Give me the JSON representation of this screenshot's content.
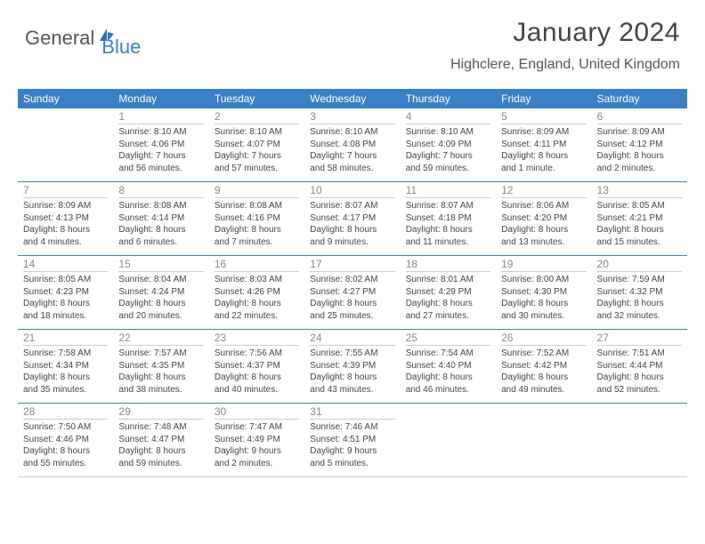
{
  "logo": {
    "text1": "General",
    "text2": "Blue"
  },
  "title": {
    "month": "January 2024",
    "location": "Highclere, England, United Kingdom"
  },
  "colors": {
    "header_bg": "#3b7fc4",
    "header_fg": "#ffffff",
    "text": "#444444",
    "muted": "#888888",
    "row_border": "#3b7fc4",
    "logo_gray": "#555555",
    "logo_blue": "#3b7fc4",
    "page_bg": "#ffffff"
  },
  "typography": {
    "title_fontsize": 30,
    "location_fontsize": 16,
    "weekday_fontsize": 12,
    "daynum_fontsize": 12,
    "cell_fontsize": 10
  },
  "weekdays": [
    "Sunday",
    "Monday",
    "Tuesday",
    "Wednesday",
    "Thursday",
    "Friday",
    "Saturday"
  ],
  "weeks": [
    [
      null,
      {
        "n": "1",
        "sr": "Sunrise: 8:10 AM",
        "ss": "Sunset: 4:06 PM",
        "d1": "Daylight: 7 hours",
        "d2": "and 56 minutes."
      },
      {
        "n": "2",
        "sr": "Sunrise: 8:10 AM",
        "ss": "Sunset: 4:07 PM",
        "d1": "Daylight: 7 hours",
        "d2": "and 57 minutes."
      },
      {
        "n": "3",
        "sr": "Sunrise: 8:10 AM",
        "ss": "Sunset: 4:08 PM",
        "d1": "Daylight: 7 hours",
        "d2": "and 58 minutes."
      },
      {
        "n": "4",
        "sr": "Sunrise: 8:10 AM",
        "ss": "Sunset: 4:09 PM",
        "d1": "Daylight: 7 hours",
        "d2": "and 59 minutes."
      },
      {
        "n": "5",
        "sr": "Sunrise: 8:09 AM",
        "ss": "Sunset: 4:11 PM",
        "d1": "Daylight: 8 hours",
        "d2": "and 1 minute."
      },
      {
        "n": "6",
        "sr": "Sunrise: 8:09 AM",
        "ss": "Sunset: 4:12 PM",
        "d1": "Daylight: 8 hours",
        "d2": "and 2 minutes."
      }
    ],
    [
      {
        "n": "7",
        "sr": "Sunrise: 8:09 AM",
        "ss": "Sunset: 4:13 PM",
        "d1": "Daylight: 8 hours",
        "d2": "and 4 minutes."
      },
      {
        "n": "8",
        "sr": "Sunrise: 8:08 AM",
        "ss": "Sunset: 4:14 PM",
        "d1": "Daylight: 8 hours",
        "d2": "and 6 minutes."
      },
      {
        "n": "9",
        "sr": "Sunrise: 8:08 AM",
        "ss": "Sunset: 4:16 PM",
        "d1": "Daylight: 8 hours",
        "d2": "and 7 minutes."
      },
      {
        "n": "10",
        "sr": "Sunrise: 8:07 AM",
        "ss": "Sunset: 4:17 PM",
        "d1": "Daylight: 8 hours",
        "d2": "and 9 minutes."
      },
      {
        "n": "11",
        "sr": "Sunrise: 8:07 AM",
        "ss": "Sunset: 4:18 PM",
        "d1": "Daylight: 8 hours",
        "d2": "and 11 minutes."
      },
      {
        "n": "12",
        "sr": "Sunrise: 8:06 AM",
        "ss": "Sunset: 4:20 PM",
        "d1": "Daylight: 8 hours",
        "d2": "and 13 minutes."
      },
      {
        "n": "13",
        "sr": "Sunrise: 8:05 AM",
        "ss": "Sunset: 4:21 PM",
        "d1": "Daylight: 8 hours",
        "d2": "and 15 minutes."
      }
    ],
    [
      {
        "n": "14",
        "sr": "Sunrise: 8:05 AM",
        "ss": "Sunset: 4:23 PM",
        "d1": "Daylight: 8 hours",
        "d2": "and 18 minutes."
      },
      {
        "n": "15",
        "sr": "Sunrise: 8:04 AM",
        "ss": "Sunset: 4:24 PM",
        "d1": "Daylight: 8 hours",
        "d2": "and 20 minutes."
      },
      {
        "n": "16",
        "sr": "Sunrise: 8:03 AM",
        "ss": "Sunset: 4:26 PM",
        "d1": "Daylight: 8 hours",
        "d2": "and 22 minutes."
      },
      {
        "n": "17",
        "sr": "Sunrise: 8:02 AM",
        "ss": "Sunset: 4:27 PM",
        "d1": "Daylight: 8 hours",
        "d2": "and 25 minutes."
      },
      {
        "n": "18",
        "sr": "Sunrise: 8:01 AM",
        "ss": "Sunset: 4:29 PM",
        "d1": "Daylight: 8 hours",
        "d2": "and 27 minutes."
      },
      {
        "n": "19",
        "sr": "Sunrise: 8:00 AM",
        "ss": "Sunset: 4:30 PM",
        "d1": "Daylight: 8 hours",
        "d2": "and 30 minutes."
      },
      {
        "n": "20",
        "sr": "Sunrise: 7:59 AM",
        "ss": "Sunset: 4:32 PM",
        "d1": "Daylight: 8 hours",
        "d2": "and 32 minutes."
      }
    ],
    [
      {
        "n": "21",
        "sr": "Sunrise: 7:58 AM",
        "ss": "Sunset: 4:34 PM",
        "d1": "Daylight: 8 hours",
        "d2": "and 35 minutes."
      },
      {
        "n": "22",
        "sr": "Sunrise: 7:57 AM",
        "ss": "Sunset: 4:35 PM",
        "d1": "Daylight: 8 hours",
        "d2": "and 38 minutes."
      },
      {
        "n": "23",
        "sr": "Sunrise: 7:56 AM",
        "ss": "Sunset: 4:37 PM",
        "d1": "Daylight: 8 hours",
        "d2": "and 40 minutes."
      },
      {
        "n": "24",
        "sr": "Sunrise: 7:55 AM",
        "ss": "Sunset: 4:39 PM",
        "d1": "Daylight: 8 hours",
        "d2": "and 43 minutes."
      },
      {
        "n": "25",
        "sr": "Sunrise: 7:54 AM",
        "ss": "Sunset: 4:40 PM",
        "d1": "Daylight: 8 hours",
        "d2": "and 46 minutes."
      },
      {
        "n": "26",
        "sr": "Sunrise: 7:52 AM",
        "ss": "Sunset: 4:42 PM",
        "d1": "Daylight: 8 hours",
        "d2": "and 49 minutes."
      },
      {
        "n": "27",
        "sr": "Sunrise: 7:51 AM",
        "ss": "Sunset: 4:44 PM",
        "d1": "Daylight: 8 hours",
        "d2": "and 52 minutes."
      }
    ],
    [
      {
        "n": "28",
        "sr": "Sunrise: 7:50 AM",
        "ss": "Sunset: 4:46 PM",
        "d1": "Daylight: 8 hours",
        "d2": "and 55 minutes."
      },
      {
        "n": "29",
        "sr": "Sunrise: 7:48 AM",
        "ss": "Sunset: 4:47 PM",
        "d1": "Daylight: 8 hours",
        "d2": "and 59 minutes."
      },
      {
        "n": "30",
        "sr": "Sunrise: 7:47 AM",
        "ss": "Sunset: 4:49 PM",
        "d1": "Daylight: 9 hours",
        "d2": "and 2 minutes."
      },
      {
        "n": "31",
        "sr": "Sunrise: 7:46 AM",
        "ss": "Sunset: 4:51 PM",
        "d1": "Daylight: 9 hours",
        "d2": "and 5 minutes."
      },
      null,
      null,
      null
    ]
  ]
}
